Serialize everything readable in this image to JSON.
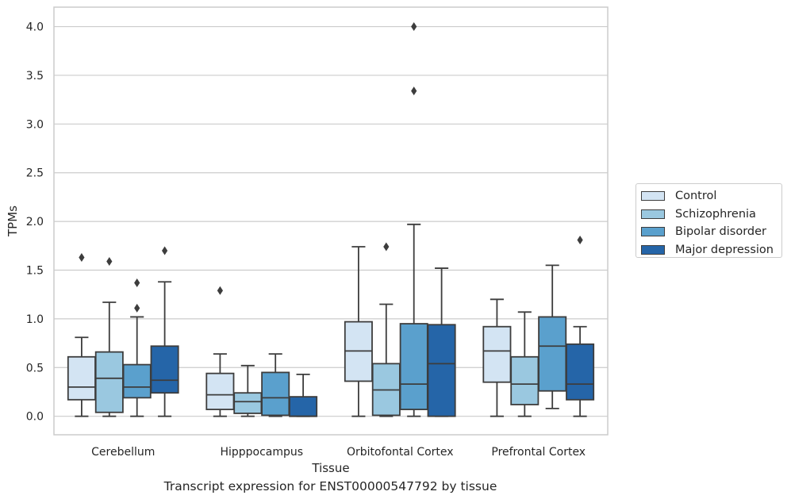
{
  "chart_data": {
    "type": "box",
    "title": "",
    "caption": "Transcript expression for ENST00000547792 by tissue",
    "xlabel": "Tissue",
    "ylabel": "TPMs",
    "ylim": [
      -0.19,
      4.2
    ],
    "yticks": [
      "0.0",
      "0.5",
      "1.0",
      "1.5",
      "2.0",
      "2.5",
      "3.0",
      "3.5",
      "4.0"
    ],
    "grid": "horizontal",
    "legend_position": "right",
    "categories": [
      "Cerebellum",
      "Hipppocampus",
      "Orbitofontal Cortex",
      "Prefrontal Cortex"
    ],
    "series": [
      {
        "name": "Control",
        "color": "#d3e4f3",
        "boxes": [
          {
            "whislo": 0.0,
            "q1": 0.17,
            "med": 0.3,
            "q3": 0.61,
            "whishi": 0.81,
            "fliers": [
              1.63
            ]
          },
          {
            "whislo": 0.0,
            "q1": 0.07,
            "med": 0.22,
            "q3": 0.44,
            "whishi": 0.64,
            "fliers": [
              1.29
            ]
          },
          {
            "whislo": 0.0,
            "q1": 0.36,
            "med": 0.67,
            "q3": 0.97,
            "whishi": 1.74,
            "fliers": []
          },
          {
            "whislo": 0.0,
            "q1": 0.35,
            "med": 0.67,
            "q3": 0.92,
            "whishi": 1.2,
            "fliers": []
          }
        ]
      },
      {
        "name": "Schizophrenia",
        "color": "#9ac8e0",
        "boxes": [
          {
            "whislo": 0.0,
            "q1": 0.04,
            "med": 0.39,
            "q3": 0.66,
            "whishi": 1.17,
            "fliers": [
              1.59
            ]
          },
          {
            "whislo": 0.0,
            "q1": 0.03,
            "med": 0.15,
            "q3": 0.24,
            "whishi": 0.52,
            "fliers": []
          },
          {
            "whislo": 0.0,
            "q1": 0.01,
            "med": 0.27,
            "q3": 0.54,
            "whishi": 1.15,
            "fliers": [
              1.74
            ]
          },
          {
            "whislo": 0.0,
            "q1": 0.12,
            "med": 0.33,
            "q3": 0.61,
            "whishi": 1.07,
            "fliers": []
          }
        ]
      },
      {
        "name": "Bipolar disorder",
        "color": "#5aa0cd",
        "boxes": [
          {
            "whislo": 0.0,
            "q1": 0.19,
            "med": 0.3,
            "q3": 0.53,
            "whishi": 1.02,
            "fliers": [
              1.11,
              1.37
            ]
          },
          {
            "whislo": 0.0,
            "q1": 0.01,
            "med": 0.19,
            "q3": 0.45,
            "whishi": 0.64,
            "fliers": []
          },
          {
            "whislo": 0.0,
            "q1": 0.07,
            "med": 0.33,
            "q3": 0.95,
            "whishi": 1.97,
            "fliers": [
              3.34,
              4.0
            ]
          },
          {
            "whislo": 0.08,
            "q1": 0.26,
            "med": 0.72,
            "q3": 1.02,
            "whishi": 1.55,
            "fliers": []
          }
        ]
      },
      {
        "name": "Major depression",
        "color": "#2565a8",
        "boxes": [
          {
            "whislo": 0.0,
            "q1": 0.24,
            "med": 0.37,
            "q3": 0.72,
            "whishi": 1.38,
            "fliers": [
              1.7
            ]
          },
          {
            "whislo": 0.0,
            "q1": 0.0,
            "med": 0.0,
            "q3": 0.2,
            "whishi": 0.43,
            "fliers": []
          },
          {
            "whislo": 0.0,
            "q1": 0.0,
            "med": 0.54,
            "q3": 0.94,
            "whishi": 1.52,
            "fliers": []
          },
          {
            "whislo": 0.0,
            "q1": 0.17,
            "med": 0.33,
            "q3": 0.74,
            "whishi": 0.92,
            "fliers": [
              1.81
            ]
          }
        ]
      }
    ]
  }
}
